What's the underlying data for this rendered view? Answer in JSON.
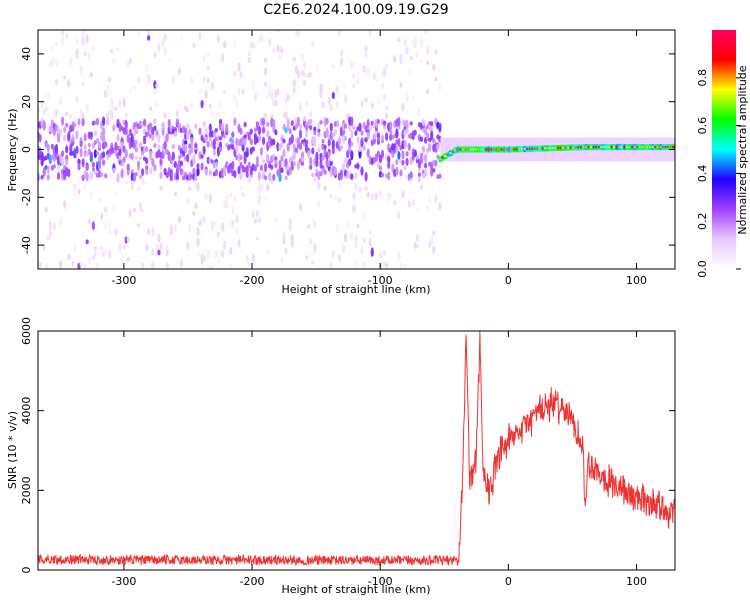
{
  "title": "C2E6.2024.100.09.19.G29",
  "chart_data": [
    {
      "type": "heatmap",
      "xlabel": "Height of straight line (km)",
      "ylabel": "Frequency (Hz)",
      "xlim": [
        -367,
        130
      ],
      "ylim": [
        -50,
        50
      ],
      "xticks": [
        -300,
        -200,
        -100,
        0,
        100
      ],
      "yticks": [
        -40,
        -20,
        0,
        20,
        40
      ],
      "colorbar": {
        "label": "Normalized spectral amplitude",
        "range": [
          0,
          1
        ],
        "ticks": [
          0.0,
          0.2,
          0.4,
          0.6,
          0.8
        ],
        "colors": [
          "#ffffff",
          "#e8c8ff",
          "#a040ff",
          "#2000ff",
          "#00ffff",
          "#00ff00",
          "#ffff00",
          "#ff0000",
          "#ff0060"
        ]
      },
      "regions": [
        {
          "x_range": [
            -367,
            -53
          ],
          "description": "noise",
          "core_band_hz": [
            -10,
            10
          ],
          "spread_hz": [
            -50,
            50
          ],
          "typical_amplitude": 0.15
        },
        {
          "x_range": [
            -53,
            130
          ],
          "description": "signal line near 0 Hz",
          "frequency_hz": [
            [
              -53,
              -4
            ],
            [
              -40,
              0
            ],
            [
              -20,
              0
            ],
            [
              0,
              0
            ],
            [
              60,
              1
            ],
            [
              100,
              1
            ],
            [
              130,
              1
            ]
          ],
          "typical_amplitude": 0.85
        }
      ]
    },
    {
      "type": "line",
      "xlabel": "Height of straight line (km)",
      "ylabel": "SNR (10 * v/v)",
      "xlim": [
        -367,
        130
      ],
      "ylim": [
        0,
        6000
      ],
      "xticks": [
        -300,
        -200,
        -100,
        0,
        100
      ],
      "yticks": [
        0,
        2000,
        4000,
        6000
      ],
      "color": "#ee3333",
      "series": [
        {
          "x": [
            -367,
            -300,
            -200,
            -100,
            -50,
            -40,
            -38,
            -35,
            -33,
            -30,
            -28,
            -25,
            -23,
            -22,
            -20,
            -18,
            -15,
            -10,
            -5,
            0,
            5,
            10,
            15,
            20,
            25,
            30,
            35,
            40,
            45,
            50,
            55,
            58,
            60,
            62,
            65,
            70,
            75,
            80,
            85,
            90,
            95,
            100,
            105,
            110,
            115,
            120,
            125,
            130
          ],
          "y": [
            270,
            250,
            250,
            240,
            240,
            260,
            600,
            3000,
            6000,
            2200,
            2500,
            2800,
            5000,
            6000,
            2600,
            2300,
            2000,
            2500,
            3000,
            3200,
            3300,
            3500,
            3700,
            3900,
            4000,
            4100,
            4150,
            4100,
            4000,
            3700,
            3400,
            3200,
            1400,
            2800,
            2600,
            2500,
            2350,
            2200,
            2100,
            2000,
            1900,
            1800,
            1750,
            1700,
            1650,
            1550,
            1500,
            1450
          ]
        }
      ]
    }
  ]
}
